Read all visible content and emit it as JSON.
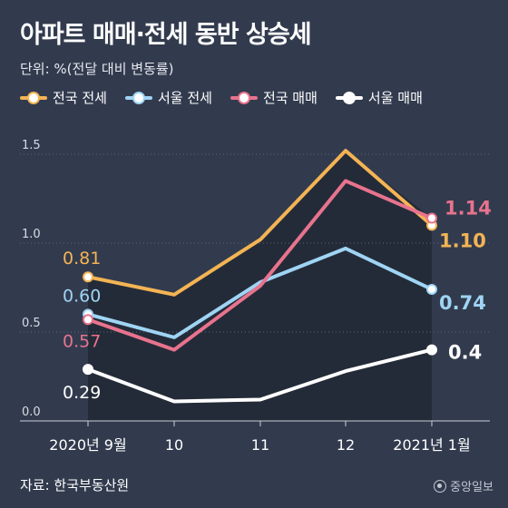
{
  "header": {
    "title": "아파트 매매·전세 동반 상승세",
    "unit": "단위: %(전달 대비 변동률)"
  },
  "footer": {
    "source": "자료: 한국부동산원",
    "logo_text": "중앙일보"
  },
  "colors": {
    "background": "#323b4e",
    "plot_fill": "#242b38",
    "grid": "#5b6477",
    "national_jeonse": "#f4b454",
    "seoul_jeonse": "#9fd4f4",
    "national_sale": "#e8738e",
    "seoul_sale": "#ffffff"
  },
  "chart_data": {
    "type": "line",
    "title": "아파트 매매·전세 동반 상승세",
    "ylabel": "단위: %(전달 대비 변동률)",
    "categories": [
      "2020년 9월",
      "10",
      "11",
      "12",
      "2021년 1월"
    ],
    "y_ticks": [
      "0.0",
      "0.5",
      "1.0",
      "1.5"
    ],
    "ylim": [
      0,
      1.5
    ],
    "grid": "horizontal",
    "legend_position": "top",
    "series": [
      {
        "name": "전국 전세",
        "color": "#f4b454",
        "values": [
          0.81,
          0.71,
          1.02,
          1.52,
          1.1
        ],
        "labels": {
          "first": "0.81",
          "last": "1.10"
        }
      },
      {
        "name": "서울 전세",
        "color": "#9fd4f4",
        "values": [
          0.6,
          0.47,
          0.78,
          0.97,
          0.74
        ],
        "labels": {
          "first": "0.60",
          "last": "0.74"
        }
      },
      {
        "name": "전국 매매",
        "color": "#e8738e",
        "values": [
          0.57,
          0.4,
          0.76,
          1.35,
          1.14
        ],
        "labels": {
          "first": "0.57",
          "last": "1.14"
        }
      },
      {
        "name": "서울 매매",
        "color": "#ffffff",
        "values": [
          0.29,
          0.11,
          0.12,
          0.28,
          0.4
        ],
        "labels": {
          "first": "0.29",
          "last": "0.4"
        }
      }
    ]
  }
}
